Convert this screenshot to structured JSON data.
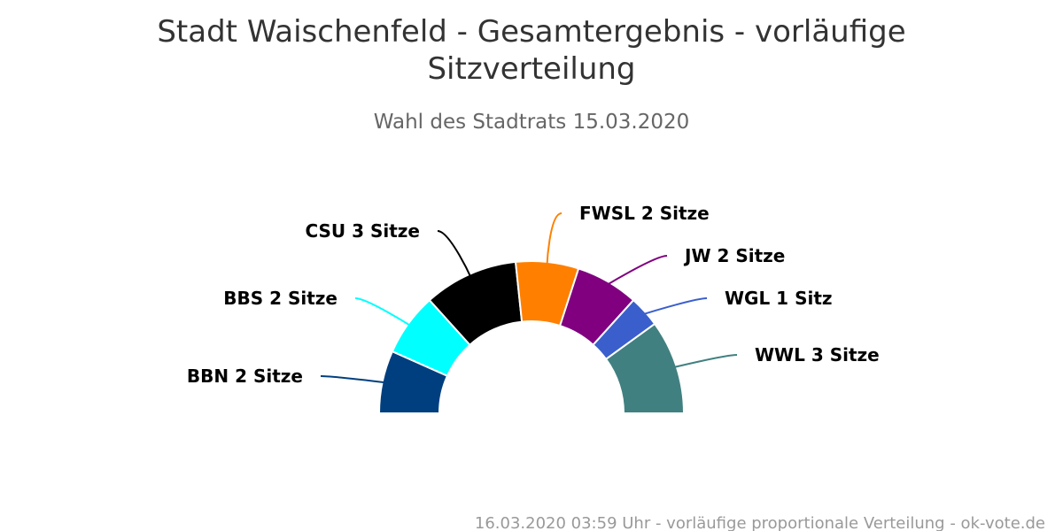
{
  "chart_data": {
    "type": "pie",
    "variant": "parliament-semicircle",
    "title": "Stadt Waischenfeld - Gesamtergebnis - vorläufige Sitzverteilung",
    "title_lines": [
      "Stadt Waischenfeld - Gesamtergebnis - vorläufige",
      "Sitzverteilung"
    ],
    "subtitle": "Wahl des Stadtrats 15.03.2020",
    "footer": "16.03.2020 03:59 Uhr - vorläufige proportionale Verteilung - ok-vote.de",
    "series": [
      {
        "name": "BBN",
        "value": 2,
        "color": "#003f7f",
        "label": "BBN 2 Sitze"
      },
      {
        "name": "BBS",
        "value": 2,
        "color": "#00ffff",
        "label": "BBS 2 Sitze"
      },
      {
        "name": "CSU",
        "value": 3,
        "color": "#000000",
        "label": "CSU 3 Sitze"
      },
      {
        "name": "FWSL",
        "value": 2,
        "color": "#ff8000",
        "label": "FWSL 2 Sitze"
      },
      {
        "name": "JW",
        "value": 2,
        "color": "#800080",
        "label": "JW 2 Sitze"
      },
      {
        "name": "WGL",
        "value": 1,
        "color": "#3a5fcd",
        "label": "WGL 1 Sitz"
      },
      {
        "name": "WWL",
        "value": 3,
        "color": "#418080",
        "label": "WWL 3 Sitze"
      }
    ]
  }
}
